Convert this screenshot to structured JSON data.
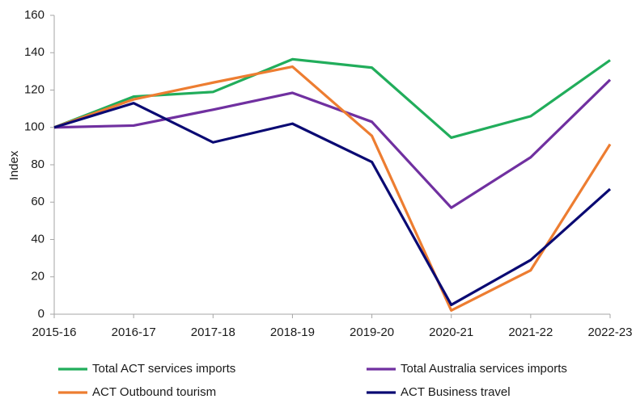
{
  "chart_data": {
    "type": "line",
    "y_label": "Index",
    "categories": [
      "2015-16",
      "2016-17",
      "2017-18",
      "2018-19",
      "2019-20",
      "2020-21",
      "2021-22",
      "2022-23"
    ],
    "series": [
      {
        "name": "Total ACT services imports",
        "color": "#21ad5b",
        "values": [
          100,
          116.5,
          119,
          136.5,
          132,
          94.5,
          106,
          136
        ]
      },
      {
        "name": "Total Australia services imports",
        "color": "#7030a0",
        "values": [
          100,
          101,
          109.5,
          118.5,
          103,
          57,
          84,
          125.5
        ]
      },
      {
        "name": "ACT Outbound tourism",
        "color": "#ed7d31",
        "values": [
          100,
          115,
          124,
          132.5,
          95.5,
          2,
          23.5,
          91
        ]
      },
      {
        "name": "ACT Business travel",
        "color": "#0a0a73",
        "values": [
          100,
          113,
          92,
          102,
          81.5,
          5,
          29,
          67
        ]
      }
    ],
    "ylim": [
      0,
      160
    ],
    "yticks": [
      0,
      20,
      40,
      60,
      80,
      100,
      120,
      140,
      160
    ],
    "grid": false,
    "legend": "bottom"
  }
}
